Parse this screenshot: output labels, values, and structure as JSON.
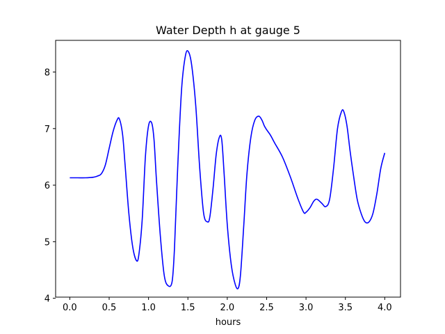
{
  "chart_data": {
    "type": "line",
    "title": "Water Depth h at gauge 5",
    "xlabel": "hours",
    "ylabel": "",
    "xlim": [
      -0.18,
      4.2
    ],
    "ylim": [
      4.02,
      8.56
    ],
    "xticks": [
      0.0,
      0.5,
      1.0,
      1.5,
      2.0,
      2.5,
      3.0,
      3.5,
      4.0
    ],
    "xtick_labels": [
      "0.0",
      "0.5",
      "1.0",
      "1.5",
      "2.0",
      "2.5",
      "3.0",
      "3.5",
      "4.0"
    ],
    "yticks": [
      4,
      5,
      6,
      7,
      8
    ],
    "ytick_labels": [
      "4",
      "5",
      "6",
      "7",
      "8"
    ],
    "grid": false,
    "line_color": "#0000ff",
    "series": [
      {
        "x": [
          0.0,
          0.1,
          0.2,
          0.3,
          0.35,
          0.4,
          0.45,
          0.5,
          0.55,
          0.6,
          0.63,
          0.67,
          0.7,
          0.75,
          0.8,
          0.85,
          0.88,
          0.92,
          0.96,
          1.0,
          1.04,
          1.07,
          1.1,
          1.15,
          1.2,
          1.25,
          1.3,
          1.33,
          1.37,
          1.42,
          1.47,
          1.51,
          1.55,
          1.6,
          1.65,
          1.7,
          1.75,
          1.78,
          1.82,
          1.86,
          1.9,
          1.93,
          1.96,
          2.0,
          2.05,
          2.1,
          2.14,
          2.17,
          2.21,
          2.25,
          2.3,
          2.35,
          2.4,
          2.44,
          2.47,
          2.5,
          2.55,
          2.6,
          2.7,
          2.8,
          2.9,
          2.97,
          3.0,
          3.05,
          3.1,
          3.14,
          3.2,
          3.25,
          3.3,
          3.35,
          3.4,
          3.45,
          3.48,
          3.52,
          3.56,
          3.6,
          3.65,
          3.7,
          3.75,
          3.8,
          3.85,
          3.9,
          3.95,
          4.0
        ],
        "y": [
          6.13,
          6.13,
          6.13,
          6.14,
          6.16,
          6.2,
          6.35,
          6.65,
          6.95,
          7.15,
          7.17,
          6.9,
          6.4,
          5.5,
          4.9,
          4.66,
          4.8,
          5.4,
          6.5,
          7.05,
          7.1,
          6.8,
          6.1,
          5.1,
          4.4,
          4.22,
          4.3,
          4.9,
          6.3,
          7.7,
          8.3,
          8.35,
          8.1,
          7.4,
          6.3,
          5.5,
          5.35,
          5.45,
          5.95,
          6.55,
          6.85,
          6.8,
          6.2,
          5.3,
          4.6,
          4.25,
          4.18,
          4.45,
          5.3,
          6.2,
          6.85,
          7.15,
          7.22,
          7.15,
          7.05,
          6.98,
          6.88,
          6.75,
          6.5,
          6.15,
          5.75,
          5.52,
          5.52,
          5.6,
          5.72,
          5.75,
          5.68,
          5.62,
          5.75,
          6.3,
          7.0,
          7.3,
          7.3,
          7.05,
          6.6,
          6.2,
          5.75,
          5.5,
          5.35,
          5.35,
          5.5,
          5.85,
          6.3,
          6.57
        ]
      }
    ]
  }
}
